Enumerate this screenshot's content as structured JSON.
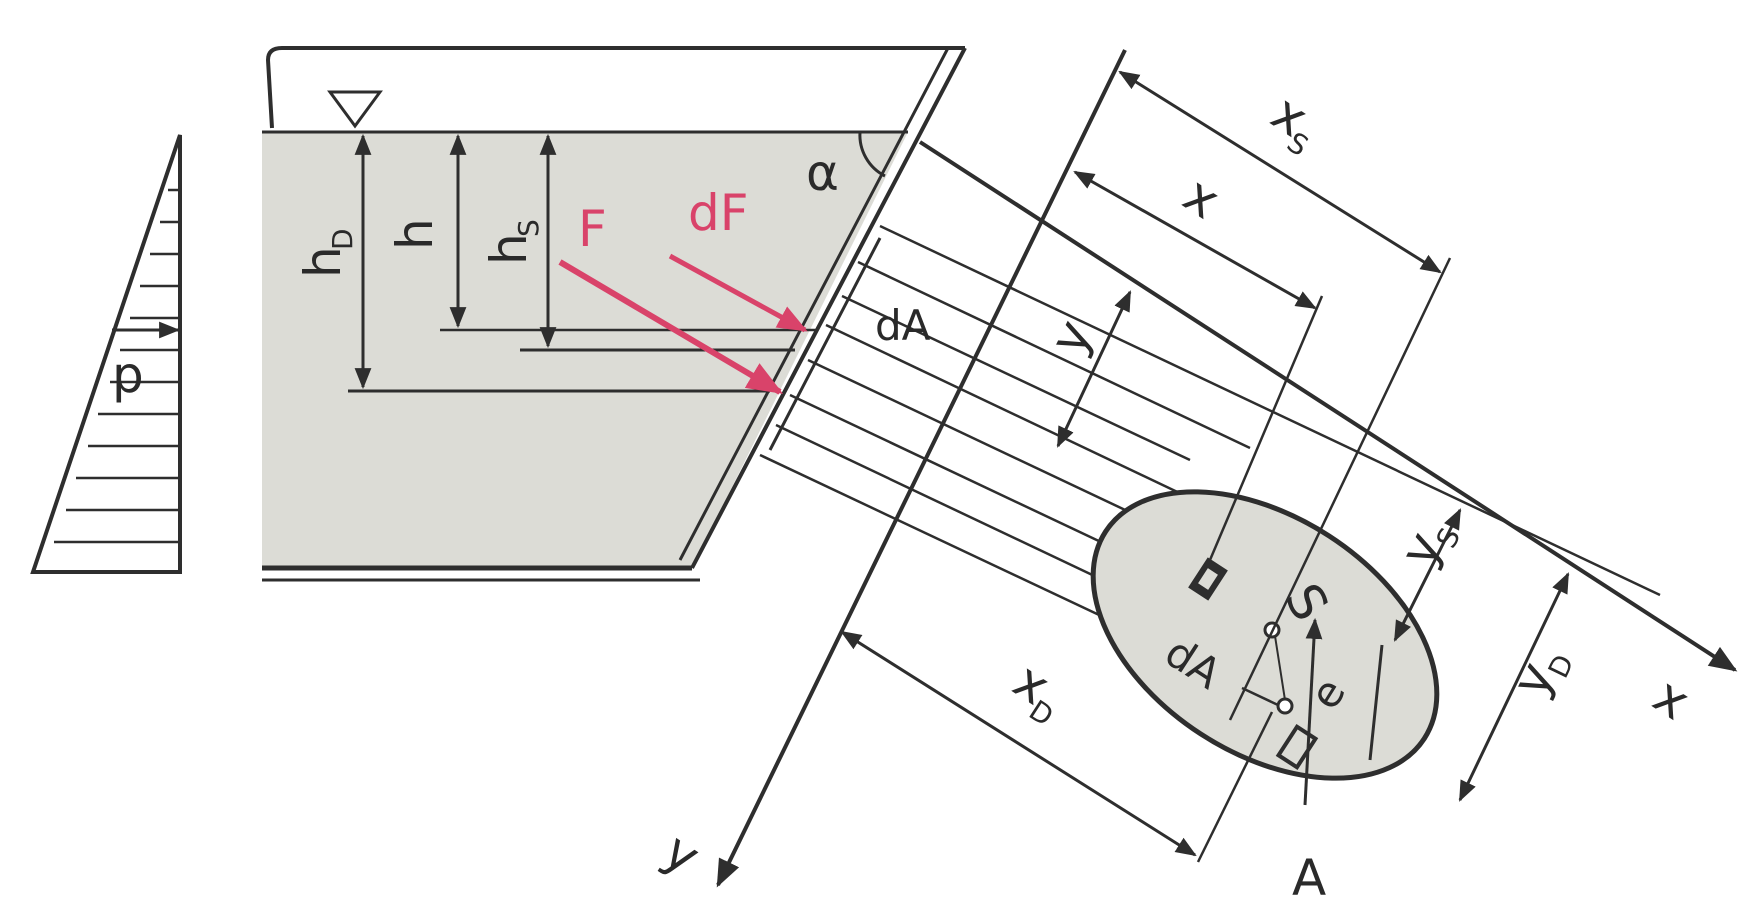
{
  "labels": {
    "h_D": "h",
    "h_D_sub": "D",
    "h": "h",
    "h_S": "h",
    "h_S_sub": "S",
    "F": "F",
    "dF": "dF",
    "alpha": "α",
    "p": "p",
    "dA_top": "dA",
    "y": "y",
    "x": "x",
    "x_S": "x",
    "x_S_sub": "S",
    "y_S": "y",
    "y_S_sub": "S",
    "S": "S",
    "y_D": "y",
    "y_D_sub": "D",
    "x_D": "x",
    "x_D_sub": "D",
    "e": "e",
    "dA_bottom": "dA",
    "A": "A",
    "axis_x": "x",
    "axis_y": "y"
  },
  "colors": {
    "line": "#2e2e2e",
    "fluid": "#dcdcd6",
    "force": "#d9436a",
    "background": "#ffffff"
  },
  "icons": {
    "water_surface": "inverted-triangle-icon"
  }
}
